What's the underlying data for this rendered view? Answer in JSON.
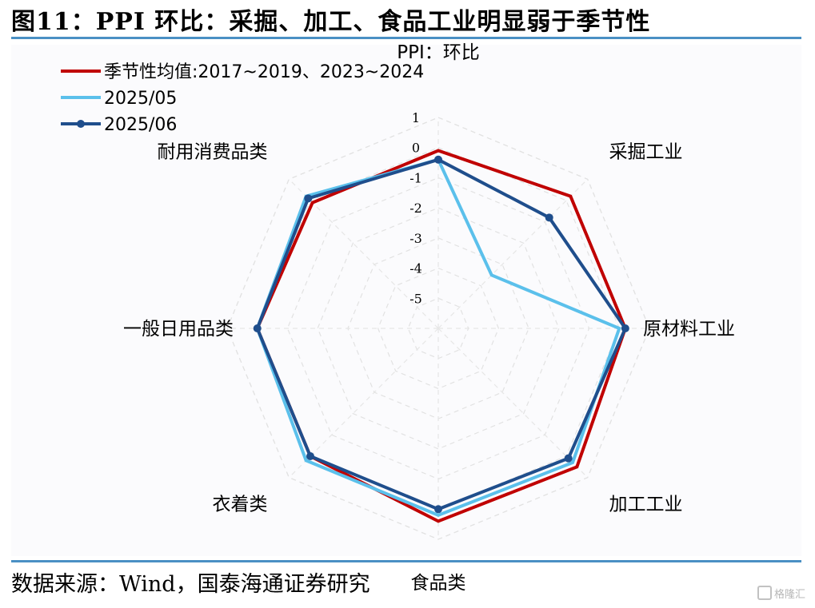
{
  "figure": {
    "title": "图11：PPI 环比：采掘、加工、食品工业明显弱于季节性",
    "source": "数据来源：Wind，国泰海通证券研究",
    "watermark": "格隆汇"
  },
  "chart_data": {
    "type": "radar",
    "title": "PPI：环比",
    "categories": [
      "PPI：环比",
      "采掘工业",
      "原材料工业",
      "加工工业",
      "食品类",
      "衣着类",
      "一般日用品类",
      "耐用消费品类"
    ],
    "radial_ticks": [
      "1",
      "0",
      "-1",
      "-2",
      "-3",
      "-4",
      "-5"
    ],
    "rlim": [
      -6,
      1
    ],
    "grid": "dashed",
    "legend_position": "top-left",
    "series": [
      {
        "name": "季节性均值:2017~2019、2023~2024",
        "color": "#c00000",
        "marker": false,
        "values": [
          -0.1,
          0.2,
          0.2,
          0.5,
          0.4,
          0.0,
          0.0,
          -0.1
        ]
      },
      {
        "name": "2025/05",
        "color": "#5bc0eb",
        "marker": false,
        "values": [
          -0.4,
          -3.5,
          0.0,
          0.3,
          0.2,
          0.2,
          0.0,
          0.2
        ]
      },
      {
        "name": "2025/06",
        "color": "#1f4e8c",
        "marker": true,
        "values": [
          -0.4,
          -0.8,
          0.2,
          0.1,
          0.0,
          0.0,
          0.0,
          0.1
        ]
      }
    ]
  }
}
